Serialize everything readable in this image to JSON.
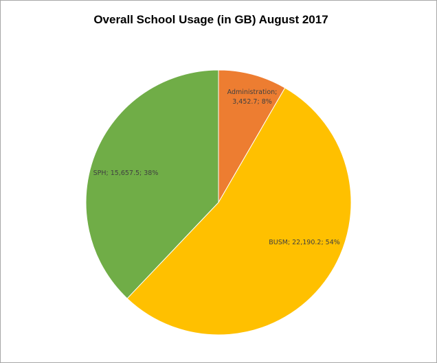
{
  "chart_data": {
    "type": "pie",
    "title": "Overall School Usage (in GB) August 2017",
    "slices": [
      {
        "name": "Administration",
        "value": 3452.7,
        "percent": 8,
        "color": "#ed7d31",
        "label_lines": [
          "Administration;",
          "3,452.7; 8%"
        ]
      },
      {
        "name": "BUSM",
        "value": 22190.2,
        "percent": 54,
        "color": "#ffc000",
        "label_lines": [
          "BUSM; 22,190.2; 54%"
        ]
      },
      {
        "name": "SPH",
        "value": 15657.5,
        "percent": 38,
        "color": "#70ad47",
        "label_lines": [
          "SPH; 15,657.5; 38%"
        ]
      }
    ]
  }
}
